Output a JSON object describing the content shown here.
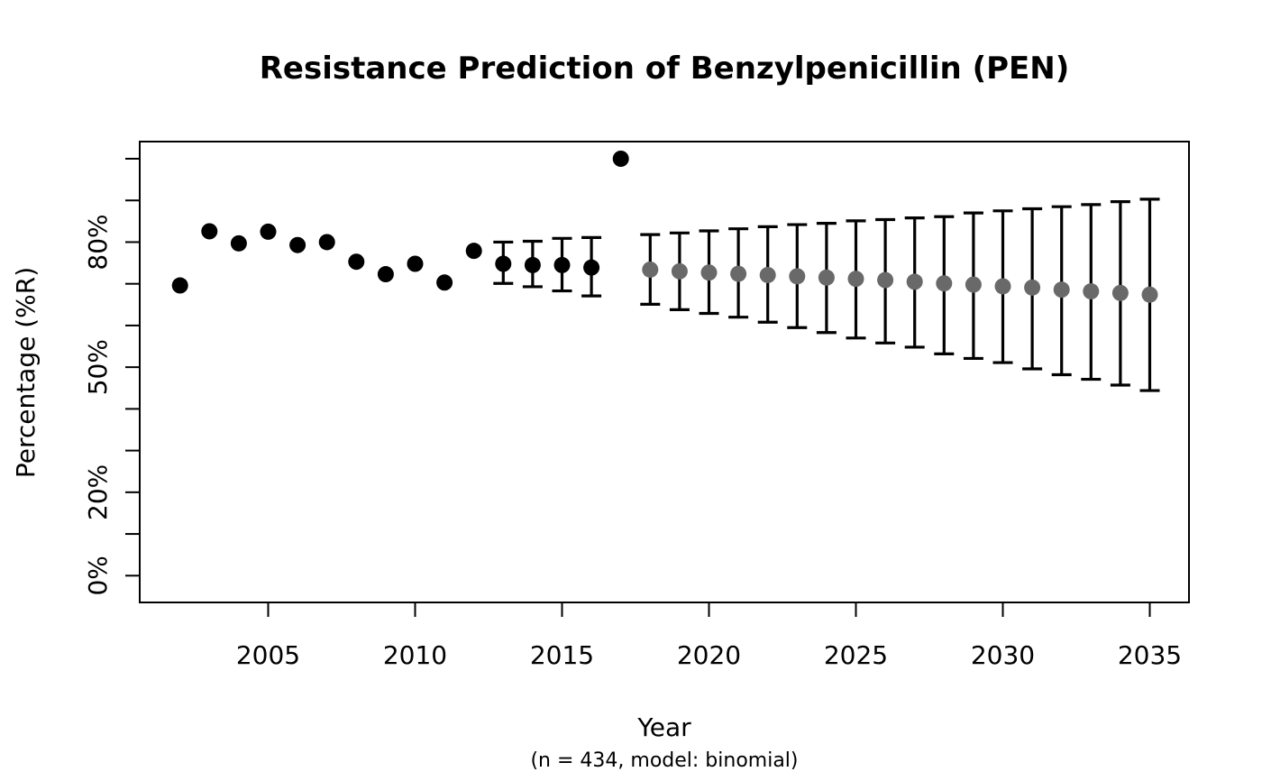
{
  "chart_data": {
    "type": "scatter",
    "title": "Resistance Prediction of Benzylpenicillin (PEN)",
    "xlabel": "Year",
    "x_sublabel": "(n = 434, model: binomial)",
    "ylabel": "Percentage (%R)",
    "xlim": [
      2000.7,
      2036.3
    ],
    "ylim": [
      -6,
      104
    ],
    "x_ticks": [
      2005,
      2010,
      2015,
      2020,
      2025,
      2030,
      2035
    ],
    "y_ticks": [
      0,
      10,
      20,
      30,
      40,
      50,
      60,
      70,
      80,
      90,
      100
    ],
    "y_tick_labels": [
      {
        "value": 0,
        "label": "0%"
      },
      {
        "value": 20,
        "label": "20%"
      },
      {
        "value": 50,
        "label": "50%"
      },
      {
        "value": 80,
        "label": "80%"
      }
    ],
    "grid": false,
    "legend": null,
    "colors": {
      "observed": "#000000",
      "predicted": "#696969",
      "error_bar": "#000000"
    },
    "series": [
      {
        "name": "observed",
        "color": "#000000",
        "points": [
          {
            "year": 2002,
            "value": 69.6,
            "ci_low": null,
            "ci_high": null
          },
          {
            "year": 2003,
            "value": 82.6,
            "ci_low": null,
            "ci_high": null
          },
          {
            "year": 2004,
            "value": 79.7,
            "ci_low": null,
            "ci_high": null
          },
          {
            "year": 2005,
            "value": 82.5,
            "ci_low": null,
            "ci_high": null
          },
          {
            "year": 2006,
            "value": 79.3,
            "ci_low": null,
            "ci_high": null
          },
          {
            "year": 2007,
            "value": 80.0,
            "ci_low": null,
            "ci_high": null
          },
          {
            "year": 2008,
            "value": 75.3,
            "ci_low": null,
            "ci_high": null
          },
          {
            "year": 2009,
            "value": 72.3,
            "ci_low": null,
            "ci_high": null
          },
          {
            "year": 2010,
            "value": 74.8,
            "ci_low": null,
            "ci_high": null
          },
          {
            "year": 2011,
            "value": 70.3,
            "ci_low": null,
            "ci_high": null
          },
          {
            "year": 2012,
            "value": 77.9,
            "ci_low": null,
            "ci_high": null
          },
          {
            "year": 2013,
            "value": 74.8,
            "ci_low": 70.1,
            "ci_high": 80.0
          },
          {
            "year": 2014,
            "value": 74.5,
            "ci_low": 69.3,
            "ci_high": 80.2
          },
          {
            "year": 2015,
            "value": 74.5,
            "ci_low": 68.3,
            "ci_high": 80.9
          },
          {
            "year": 2016,
            "value": 73.9,
            "ci_low": 67.1,
            "ci_high": 81.1
          },
          {
            "year": 2017,
            "value": 100.0,
            "ci_low": null,
            "ci_high": null
          }
        ]
      },
      {
        "name": "predicted",
        "color": "#696969",
        "points": [
          {
            "year": 2018,
            "value": 73.4,
            "ci_low": 65.1,
            "ci_high": 81.8
          },
          {
            "year": 2019,
            "value": 73.0,
            "ci_low": 63.8,
            "ci_high": 82.2
          },
          {
            "year": 2020,
            "value": 72.7,
            "ci_low": 62.9,
            "ci_high": 82.7
          },
          {
            "year": 2021,
            "value": 72.4,
            "ci_low": 62.0,
            "ci_high": 83.2
          },
          {
            "year": 2022,
            "value": 72.1,
            "ci_low": 60.8,
            "ci_high": 83.7
          },
          {
            "year": 2023,
            "value": 71.8,
            "ci_low": 59.5,
            "ci_high": 84.2
          },
          {
            "year": 2024,
            "value": 71.5,
            "ci_low": 58.3,
            "ci_high": 84.5
          },
          {
            "year": 2025,
            "value": 71.2,
            "ci_low": 57.0,
            "ci_high": 85.1
          },
          {
            "year": 2026,
            "value": 70.9,
            "ci_low": 55.8,
            "ci_high": 85.4
          },
          {
            "year": 2027,
            "value": 70.5,
            "ci_low": 54.8,
            "ci_high": 85.8
          },
          {
            "year": 2028,
            "value": 70.1,
            "ci_low": 53.2,
            "ci_high": 86.1
          },
          {
            "year": 2029,
            "value": 69.8,
            "ci_low": 52.1,
            "ci_high": 87.0
          },
          {
            "year": 2030,
            "value": 69.4,
            "ci_low": 51.1,
            "ci_high": 87.5
          },
          {
            "year": 2031,
            "value": 69.1,
            "ci_low": 49.6,
            "ci_high": 88.0
          },
          {
            "year": 2032,
            "value": 68.6,
            "ci_low": 48.2,
            "ci_high": 88.5
          },
          {
            "year": 2033,
            "value": 68.2,
            "ci_low": 47.1,
            "ci_high": 89.0
          },
          {
            "year": 2034,
            "value": 67.8,
            "ci_low": 45.7,
            "ci_high": 89.7
          },
          {
            "year": 2035,
            "value": 67.4,
            "ci_low": 44.4,
            "ci_high": 90.3
          }
        ]
      }
    ]
  }
}
